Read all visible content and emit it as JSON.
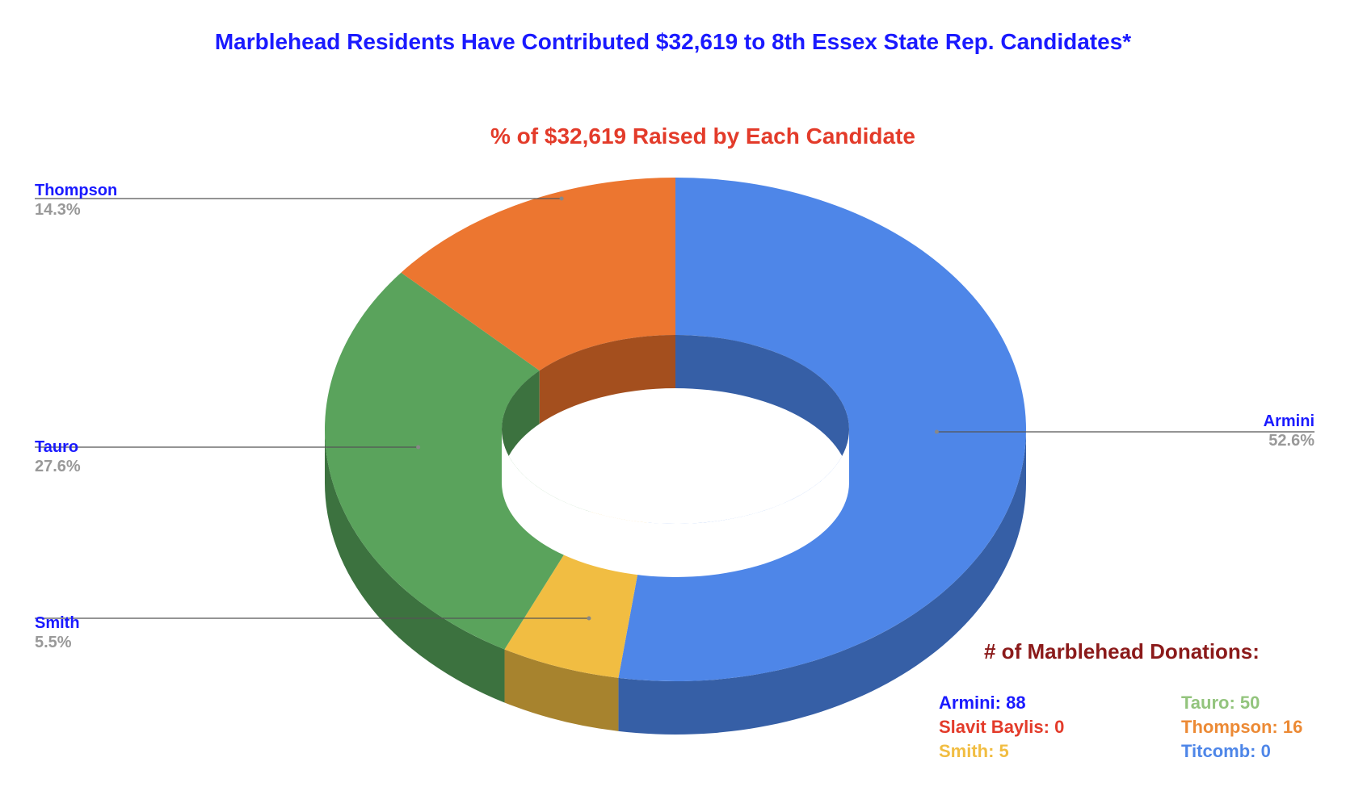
{
  "title": "Marblehead Residents Have Contributed $32,619 to 8th Essex State Rep. Candidates*",
  "chart_data": {
    "type": "pie",
    "style": "donut-3d",
    "title": "% of $32,619 Raised by Each Candidate",
    "slices": [
      {
        "label": "Armini",
        "value": 52.6,
        "display": "52.6%",
        "color": "#4e86e8",
        "side": "#365fa6"
      },
      {
        "label": "Smith",
        "value": 5.5,
        "display": "5.5%",
        "color": "#f1bd42",
        "side": "#a7832e"
      },
      {
        "label": "Tauro",
        "value": 27.6,
        "display": "27.6%",
        "color": "#5aa35c",
        "side": "#3c723f"
      },
      {
        "label": "Thompson",
        "value": 14.3,
        "display": "14.3%",
        "color": "#ec7630",
        "side": "#a44f1e"
      }
    ]
  },
  "donations": {
    "title": "# of Marblehead Donations:",
    "items": [
      {
        "text": "Armini: 88",
        "color": "#1a1aff"
      },
      {
        "text": "Slavit Baylis: 0",
        "color": "#e33b2a"
      },
      {
        "text": "Smith: 5",
        "color": "#f1bd42"
      },
      {
        "text": "Tauro: 50",
        "color": "#93c47d"
      },
      {
        "text": "Thompson: 16",
        "color": "#ec8a35"
      },
      {
        "text": "Titcomb: 0",
        "color": "#4e86e8"
      }
    ]
  }
}
